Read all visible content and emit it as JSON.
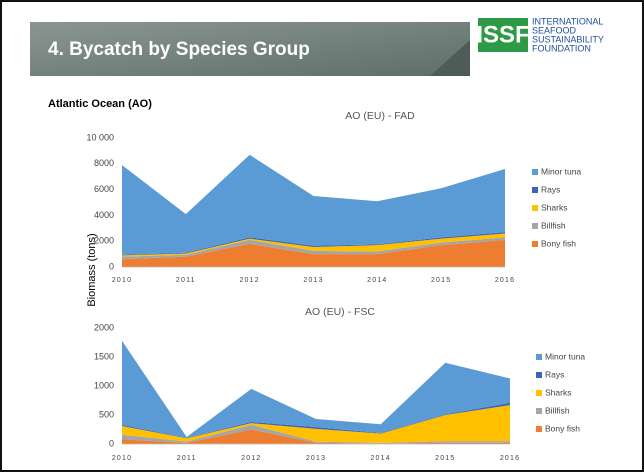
{
  "header": {
    "title": "4.  Bycatch by Species Group",
    "logo": "ISSF",
    "logo_lines": [
      "INTERNATIONAL",
      "SEAFOOD",
      "SUSTAINABILITY",
      "FOUNDATION"
    ]
  },
  "section": "Atlantic Ocean (AO)",
  "y_axis_label": "Biomass (tons)",
  "chart_data": [
    {
      "type": "stacked_area",
      "title": "AO (EU) - FAD",
      "categories": [
        "2010",
        "2011",
        "2012",
        "2013",
        "2014",
        "2015",
        "2016"
      ],
      "ylim": [
        0,
        10000
      ],
      "yticks": [
        0,
        2000,
        4000,
        6000,
        8000,
        {
          "value": 10000,
          "label": "10 000"
        }
      ],
      "legend": "right",
      "series": [
        {
          "name": "Bony fish",
          "color": "#ed7d31",
          "values": [
            600,
            800,
            1800,
            1000,
            1000,
            1700,
            2100
          ]
        },
        {
          "name": "Billfish",
          "color": "#a5a5a5",
          "values": [
            200,
            150,
            300,
            250,
            200,
            200,
            200
          ]
        },
        {
          "name": "Sharks",
          "color": "#ffc000",
          "values": [
            100,
            100,
            100,
            300,
            500,
            300,
            300
          ]
        },
        {
          "name": "Rays",
          "color": "#3a64b4",
          "values": [
            50,
            50,
            100,
            100,
            50,
            100,
            100
          ]
        },
        {
          "name": "Minor tuna",
          "color": "#5b9bd5",
          "values": [
            6950,
            3000,
            6400,
            3850,
            3350,
            3800,
            4900
          ]
        }
      ]
    },
    {
      "type": "stacked_area",
      "title": "AO (EU) - FSC",
      "categories": [
        "2010",
        "2011",
        "2012",
        "2013",
        "2014",
        "2015",
        "2016"
      ],
      "ylim": [
        0,
        2000
      ],
      "yticks": [
        0,
        500,
        1000,
        1500,
        2000
      ],
      "legend": "right",
      "series": [
        {
          "name": "Bony fish",
          "color": "#ed7d31",
          "values": [
            80,
            20,
            250,
            20,
            10,
            20,
            20
          ]
        },
        {
          "name": "Billfish",
          "color": "#a5a5a5",
          "values": [
            80,
            20,
            80,
            20,
            10,
            30,
            30
          ]
        },
        {
          "name": "Sharks",
          "color": "#ffc000",
          "values": [
            150,
            60,
            30,
            220,
            160,
            450,
            620
          ]
        },
        {
          "name": "Rays",
          "color": "#3a64b4",
          "values": [
            20,
            5,
            20,
            30,
            10,
            10,
            40
          ]
        },
        {
          "name": "Minor tuna",
          "color": "#5b9bd5",
          "values": [
            1450,
            15,
            570,
            140,
            150,
            890,
            420
          ]
        }
      ]
    }
  ]
}
